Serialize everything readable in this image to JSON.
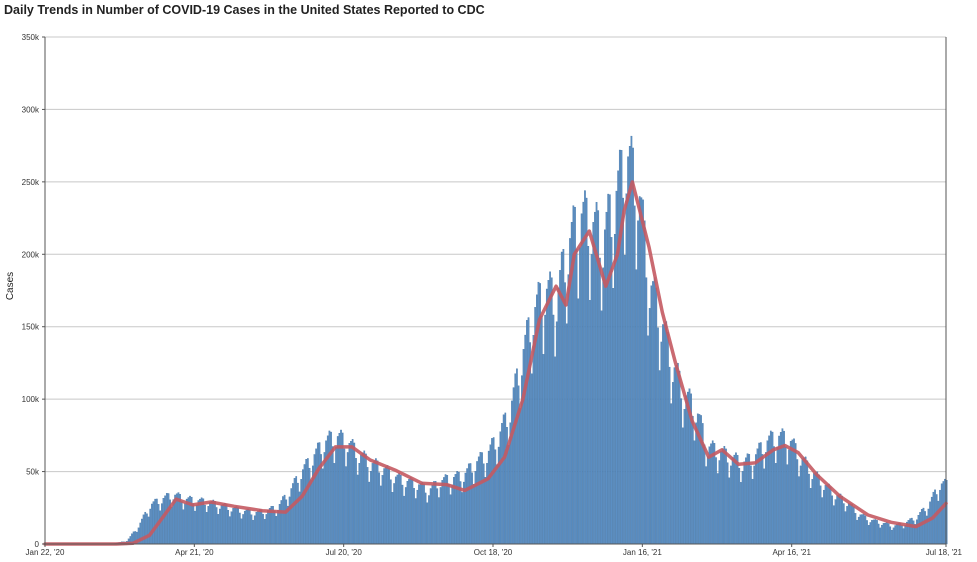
{
  "chart_data": {
    "type": "bar",
    "title": "Daily Trends in Number of COVID-19 Cases in the United States Reported to CDC",
    "xlabel": "",
    "ylabel": "Cases",
    "ylim": [
      0,
      350000
    ],
    "y_ticks": [
      {
        "value": 0,
        "label": "0"
      },
      {
        "value": 50000,
        "label": "50k"
      },
      {
        "value": 100000,
        "label": "100k"
      },
      {
        "value": 150000,
        "label": "150k"
      },
      {
        "value": 200000,
        "label": "200k"
      },
      {
        "value": 250000,
        "label": "250k"
      },
      {
        "value": 300000,
        "label": "300k"
      },
      {
        "value": 350000,
        "label": "350k"
      }
    ],
    "x_range": [
      "2020-01-22",
      "2021-07-18"
    ],
    "x_ticks": [
      {
        "date": "2020-01-22",
        "label": "Jan 22, '20"
      },
      {
        "date": "2020-04-21",
        "label": "Apr 21, '20"
      },
      {
        "date": "2020-07-20",
        "label": "Jul 20, '20"
      },
      {
        "date": "2020-10-18",
        "label": "Oct 18, '20"
      },
      {
        "date": "2021-01-16",
        "label": "Jan 16, '21"
      },
      {
        "date": "2021-04-16",
        "label": "Apr 16, '21"
      },
      {
        "date": "2021-07-18",
        "label": "Jul 18, '21"
      }
    ],
    "grid": true,
    "colors": {
      "bars": "#5b8fc4",
      "bar_edge": "#3e6f9f",
      "moving_average": "#c45a62",
      "grid": "#c8c8c8"
    },
    "series": [
      {
        "kind": "daily",
        "resolution": "weekly (approximate)",
        "x": [
          "2020-01-22",
          "2020-01-29",
          "2020-02-05",
          "2020-02-12",
          "2020-02-19",
          "2020-02-26",
          "2020-03-04",
          "2020-03-11",
          "2020-03-18",
          "2020-03-25",
          "2020-04-01",
          "2020-04-08",
          "2020-04-15",
          "2020-04-22",
          "2020-04-29",
          "2020-05-06",
          "2020-05-13",
          "2020-05-20",
          "2020-05-27",
          "2020-06-03",
          "2020-06-10",
          "2020-06-17",
          "2020-06-24",
          "2020-07-01",
          "2020-07-08",
          "2020-07-15",
          "2020-07-22",
          "2020-07-29",
          "2020-08-05",
          "2020-08-12",
          "2020-08-19",
          "2020-08-26",
          "2020-09-02",
          "2020-09-09",
          "2020-09-16",
          "2020-09-23",
          "2020-09-30",
          "2020-10-07",
          "2020-10-14",
          "2020-10-21",
          "2020-10-28",
          "2020-11-04",
          "2020-11-11",
          "2020-11-18",
          "2020-11-25",
          "2020-12-02",
          "2020-12-09",
          "2020-12-16",
          "2020-12-23",
          "2020-12-30",
          "2021-01-06",
          "2021-01-13",
          "2021-01-20",
          "2021-01-27",
          "2021-02-03",
          "2021-02-10",
          "2021-02-17",
          "2021-02-24",
          "2021-03-03",
          "2021-03-10",
          "2021-03-17",
          "2021-03-24",
          "2021-03-31",
          "2021-04-07",
          "2021-04-14",
          "2021-04-21",
          "2021-04-28",
          "2021-05-05",
          "2021-05-12",
          "2021-05-19",
          "2021-05-26",
          "2021-06-02",
          "2021-06-09",
          "2021-06-16",
          "2021-06-23",
          "2021-06-30",
          "2021-07-07",
          "2021-07-14"
        ],
        "values": [
          0,
          0,
          0,
          0,
          0,
          0,
          500,
          2000,
          12000,
          26000,
          30000,
          33000,
          30000,
          29000,
          28000,
          26000,
          24000,
          22000,
          21000,
          22000,
          25000,
          35000,
          48000,
          58000,
          68000,
          72000,
          68000,
          60000,
          54000,
          51000,
          45000,
          42000,
          40000,
          36000,
          42000,
          44000,
          46000,
          54000,
          60000,
          72000,
          90000,
          125000,
          155000,
          170000,
          165000,
          200000,
          220000,
          215000,
          205000,
          230000,
          260000,
          240000,
          175000,
          150000,
          120000,
          100000,
          90000,
          65000,
          62000,
          58000,
          54000,
          58000,
          68000,
          72000,
          70000,
          58000,
          48000,
          40000,
          33000,
          28000,
          20000,
          16000,
          14000,
          12000,
          14000,
          18000,
          26000,
          40000
        ]
      },
      {
        "kind": "7-day moving average",
        "x": [
          "2020-01-22",
          "2020-03-05",
          "2020-03-15",
          "2020-03-25",
          "2020-04-03",
          "2020-04-10",
          "2020-04-20",
          "2020-05-01",
          "2020-05-15",
          "2020-06-01",
          "2020-06-15",
          "2020-06-25",
          "2020-07-05",
          "2020-07-15",
          "2020-07-25",
          "2020-08-05",
          "2020-08-20",
          "2020-09-05",
          "2020-09-20",
          "2020-10-01",
          "2020-10-15",
          "2020-10-25",
          "2020-11-05",
          "2020-11-15",
          "2020-11-25",
          "2020-12-01",
          "2020-12-06",
          "2020-12-15",
          "2020-12-25",
          "2021-01-01",
          "2021-01-05",
          "2021-01-10",
          "2021-01-20",
          "2021-01-28",
          "2021-02-05",
          "2021-02-15",
          "2021-02-25",
          "2021-03-05",
          "2021-03-15",
          "2021-03-25",
          "2021-04-05",
          "2021-04-12",
          "2021-04-20",
          "2021-05-01",
          "2021-05-15",
          "2021-06-01",
          "2021-06-15",
          "2021-06-30",
          "2021-07-10",
          "2021-07-18"
        ],
        "values": [
          0,
          0,
          500,
          6000,
          20000,
          31000,
          27000,
          29000,
          26000,
          23000,
          22000,
          33000,
          52000,
          67000,
          67000,
          58000,
          51000,
          42000,
          41000,
          37000,
          45000,
          60000,
          100000,
          155000,
          178000,
          165000,
          200000,
          216000,
          178000,
          200000,
          230000,
          250000,
          205000,
          160000,
          125000,
          85000,
          60000,
          65000,
          55000,
          56000,
          65000,
          68000,
          63000,
          48000,
          33000,
          20000,
          15000,
          12000,
          18000,
          28000
        ]
      }
    ]
  }
}
